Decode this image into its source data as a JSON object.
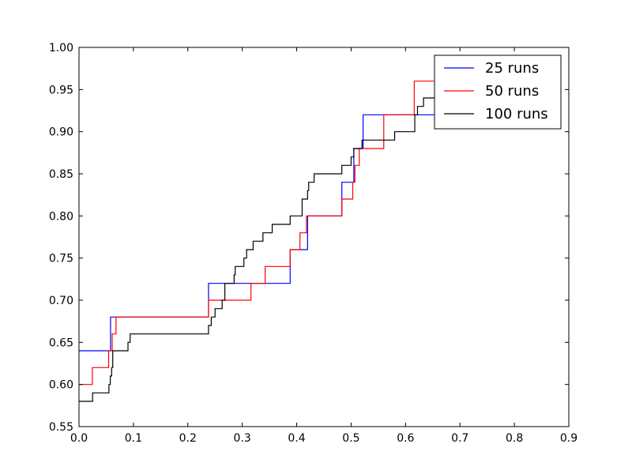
{
  "chart_data": {
    "type": "line",
    "title": "",
    "xlabel": "",
    "ylabel": "",
    "xlim": [
      0.0,
      0.9
    ],
    "ylim": [
      0.55,
      1.0
    ],
    "xticks": [
      "0.0",
      "0.1",
      "0.2",
      "0.3",
      "0.4",
      "0.5",
      "0.6",
      "0.7",
      "0.8",
      "0.9"
    ],
    "yticks": [
      "0.55",
      "0.60",
      "0.65",
      "0.70",
      "0.75",
      "0.80",
      "0.85",
      "0.90",
      "0.95",
      "1.00"
    ],
    "grid": false,
    "legend_position": "top-right",
    "series": [
      {
        "name": "25 runs",
        "color": "#0000ff",
        "x": [
          0.0,
          0.058,
          0.058,
          0.238,
          0.238,
          0.388,
          0.388,
          0.42,
          0.42,
          0.483,
          0.483,
          0.505,
          0.505,
          0.522,
          0.522,
          0.7
        ],
        "y": [
          0.64,
          0.64,
          0.68,
          0.68,
          0.72,
          0.72,
          0.76,
          0.76,
          0.8,
          0.8,
          0.84,
          0.84,
          0.88,
          0.88,
          0.92,
          0.92
        ]
      },
      {
        "name": "50 runs",
        "color": "#ff0000",
        "x": [
          0.0,
          0.0245,
          0.0245,
          0.0545,
          0.0545,
          0.061,
          0.061,
          0.068,
          0.068,
          0.238,
          0.238,
          0.316,
          0.316,
          0.342,
          0.342,
          0.388,
          0.388,
          0.406,
          0.406,
          0.418,
          0.418,
          0.483,
          0.483,
          0.503,
          0.503,
          0.507,
          0.507,
          0.515,
          0.515,
          0.56,
          0.56,
          0.58,
          0.58,
          0.616,
          0.616,
          0.652
        ],
        "y": [
          0.6,
          0.6,
          0.62,
          0.62,
          0.64,
          0.64,
          0.66,
          0.66,
          0.68,
          0.68,
          0.7,
          0.7,
          0.72,
          0.72,
          0.74,
          0.74,
          0.76,
          0.76,
          0.78,
          0.78,
          0.8,
          0.8,
          0.82,
          0.82,
          0.84,
          0.84,
          0.86,
          0.86,
          0.88,
          0.88,
          0.92,
          0.92,
          0.92,
          0.92,
          0.96,
          0.96
        ]
      },
      {
        "name": "100 runs",
        "color": "#000000",
        "x": [
          0.0,
          0.025,
          0.025,
          0.055,
          0.055,
          0.0575,
          0.0575,
          0.06,
          0.06,
          0.062,
          0.062,
          0.064,
          0.064,
          0.09,
          0.09,
          0.094,
          0.094,
          0.098,
          0.098,
          0.238,
          0.238,
          0.243,
          0.243,
          0.25,
          0.25,
          0.263,
          0.263,
          0.268,
          0.268,
          0.285,
          0.285,
          0.287,
          0.287,
          0.303,
          0.303,
          0.308,
          0.308,
          0.32,
          0.32,
          0.332,
          0.332,
          0.338,
          0.338,
          0.345,
          0.345,
          0.355,
          0.355,
          0.388,
          0.388,
          0.4,
          0.4,
          0.41,
          0.41,
          0.42,
          0.42,
          0.422,
          0.422,
          0.432,
          0.432,
          0.483,
          0.483,
          0.5,
          0.5,
          0.505,
          0.505,
          0.52,
          0.52,
          0.58,
          0.58,
          0.585,
          0.585,
          0.617,
          0.617,
          0.622,
          0.622,
          0.633,
          0.633,
          0.648,
          0.648,
          0.658
        ],
        "y": [
          0.58,
          0.58,
          0.59,
          0.59,
          0.6,
          0.6,
          0.61,
          0.61,
          0.62,
          0.62,
          0.64,
          0.64,
          0.64,
          0.64,
          0.65,
          0.65,
          0.66,
          0.66,
          0.66,
          0.66,
          0.67,
          0.67,
          0.68,
          0.68,
          0.69,
          0.69,
          0.7,
          0.7,
          0.72,
          0.72,
          0.73,
          0.73,
          0.74,
          0.74,
          0.75,
          0.75,
          0.76,
          0.76,
          0.77,
          0.77,
          0.77,
          0.77,
          0.78,
          0.78,
          0.78,
          0.78,
          0.79,
          0.79,
          0.8,
          0.8,
          0.8,
          0.8,
          0.82,
          0.82,
          0.83,
          0.83,
          0.84,
          0.84,
          0.85,
          0.85,
          0.86,
          0.86,
          0.87,
          0.87,
          0.88,
          0.88,
          0.89,
          0.89,
          0.9,
          0.9,
          0.9,
          0.9,
          0.92,
          0.92,
          0.93,
          0.93,
          0.94,
          0.94,
          0.94,
          0.94
        ]
      }
    ]
  }
}
